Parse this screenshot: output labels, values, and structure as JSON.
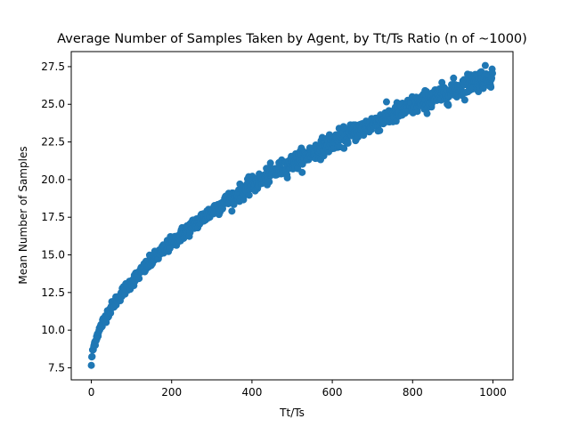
{
  "chart_data": {
    "type": "scatter",
    "title": "Average Number of Samples Taken by Agent, by Tt/Ts Ratio (n of ~1000)",
    "xlabel": "Tt/Ts",
    "ylabel": "Mean Number of Samples",
    "xlim": [
      -50,
      1050
    ],
    "ylim": [
      6.7,
      28.5
    ],
    "x_ticks": [
      0,
      200,
      400,
      600,
      800,
      1000
    ],
    "x_tick_labels": [
      "0",
      "200",
      "400",
      "600",
      "800",
      "1000"
    ],
    "y_ticks": [
      7.5,
      10.0,
      12.5,
      15.0,
      17.5,
      20.0,
      22.5,
      25.0,
      27.5
    ],
    "y_tick_labels": [
      "7.5",
      "10.0",
      "12.5",
      "15.0",
      "17.5",
      "20.0",
      "22.5",
      "25.0",
      "27.5"
    ],
    "grid": false,
    "legend": "none",
    "marker_color": "#1f77b4",
    "trend_points": {
      "x": [
        0,
        1,
        3,
        6,
        10,
        15,
        20,
        30,
        40,
        50,
        60,
        80,
        100,
        125,
        150,
        175,
        200,
        250,
        300,
        350,
        400,
        450,
        500,
        550,
        600,
        650,
        700,
        750,
        800,
        850,
        900,
        950,
        1000
      ],
      "y": [
        7.7,
        8.1,
        8.5,
        8.9,
        9.3,
        9.7,
        10.0,
        10.6,
        11.1,
        11.5,
        11.9,
        12.6,
        13.2,
        13.9,
        14.6,
        15.2,
        15.8,
        16.9,
        17.9,
        18.8,
        19.6,
        20.4,
        21.1,
        21.8,
        22.5,
        23.1,
        23.7,
        24.3,
        24.9,
        25.4,
        25.9,
        26.5,
        26.9
      ]
    },
    "spread": 0.35,
    "n_points": 1000
  }
}
